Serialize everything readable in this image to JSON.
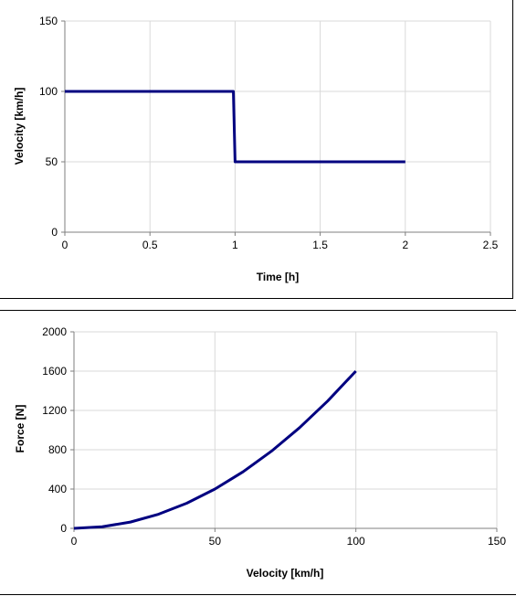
{
  "colors": {
    "series": "#000080",
    "grid": "#d9d9d9",
    "axis": "#7f7f7f"
  },
  "chart_data": [
    {
      "type": "line",
      "title": "",
      "xlabel": "Time [h]",
      "ylabel": "Velocity [km/h]",
      "xlim": [
        0,
        2.5
      ],
      "ylim": [
        0,
        150
      ],
      "xticks": [
        "0",
        "0.5",
        "1",
        "1.5",
        "2",
        "2.5"
      ],
      "yticks": [
        "0",
        "50",
        "100",
        "150"
      ],
      "grid": true,
      "series": [
        {
          "x": [
            0,
            0.99,
            1.0,
            2.0
          ],
          "y": [
            100,
            100,
            50,
            50
          ]
        }
      ]
    },
    {
      "type": "line",
      "title": "",
      "xlabel": "Velocity [km/h]",
      "ylabel": "Force [N]",
      "xlim": [
        0,
        150
      ],
      "ylim": [
        0,
        2000
      ],
      "xticks": [
        "0",
        "50",
        "100",
        "150"
      ],
      "yticks": [
        "0",
        "400",
        "800",
        "1200",
        "1600",
        "2000"
      ],
      "grid": true,
      "series": [
        {
          "x": [
            0,
            10,
            20,
            30,
            40,
            50,
            60,
            70,
            80,
            90,
            100
          ],
          "y": [
            0,
            16,
            64,
            144,
            256,
            400,
            576,
            784,
            1024,
            1296,
            1600
          ]
        }
      ]
    }
  ]
}
